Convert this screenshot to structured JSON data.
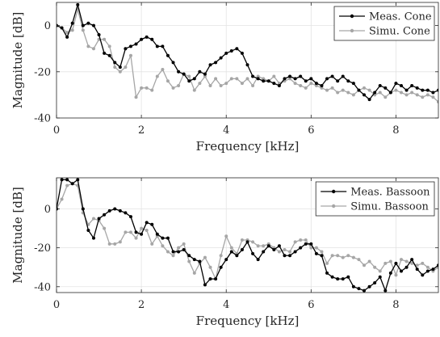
{
  "chart_data": [
    {
      "type": "line",
      "xlabel": "Frequency [kHz]",
      "ylabel": "Magnitude [dB]",
      "xlim": [
        0,
        9
      ],
      "ylim": [
        -40,
        10
      ],
      "xticks": [
        "0",
        "2",
        "4",
        "6",
        "8"
      ],
      "yticks": [
        "0",
        "-20",
        "-40"
      ],
      "xtick_values": [
        0,
        2,
        4,
        6,
        8
      ],
      "ytick_values": [
        0,
        -20,
        -40
      ],
      "grid": true,
      "legend_position": "top-right",
      "x": [
        0.0,
        0.125,
        0.25,
        0.375,
        0.5,
        0.625,
        0.75,
        0.875,
        1.0,
        1.125,
        1.25,
        1.375,
        1.5,
        1.625,
        1.75,
        1.875,
        2.0,
        2.125,
        2.25,
        2.375,
        2.5,
        2.625,
        2.75,
        2.875,
        3.0,
        3.125,
        3.25,
        3.375,
        3.5,
        3.625,
        3.75,
        3.875,
        4.0,
        4.125,
        4.25,
        4.375,
        4.5,
        4.625,
        4.75,
        4.875,
        5.0,
        5.125,
        5.25,
        5.375,
        5.5,
        5.625,
        5.75,
        5.875,
        6.0,
        6.125,
        6.25,
        6.375,
        6.5,
        6.625,
        6.75,
        6.875,
        7.0,
        7.125,
        7.25,
        7.375,
        7.5,
        7.625,
        7.75,
        7.875,
        8.0,
        8.125,
        8.25,
        8.375,
        8.5,
        8.625,
        8.75,
        8.875,
        9.0
      ],
      "series": [
        {
          "name": "Meas. Cone",
          "color": "#000000",
          "values": [
            0,
            -1,
            -5,
            1,
            9,
            0,
            1,
            0,
            -4,
            -12,
            -13,
            -16,
            -18,
            -10,
            -9,
            -8,
            -6,
            -5,
            -6,
            -9,
            -9,
            -13,
            -16,
            -20,
            -21,
            -24,
            -23,
            -20,
            -21,
            -17,
            -16,
            -14,
            -12,
            -11,
            -10,
            -12,
            -17,
            -22,
            -23,
            -24,
            -24,
            -25,
            -26,
            -23,
            -22,
            -23,
            -22,
            -24,
            -23,
            -25,
            -26,
            -23,
            -22,
            -24,
            -22,
            -24,
            -25,
            -28,
            -30,
            -32,
            -29,
            -26,
            -27,
            -29,
            -25,
            -26,
            -28,
            -26,
            -27,
            -28,
            -28,
            -29,
            -28
          ]
        },
        {
          "name": "Simu. Cone",
          "color": "#a6a6a6",
          "values": [
            0,
            -1,
            -3,
            -2,
            7,
            -2,
            -9,
            -10,
            -6,
            -6,
            -9,
            -18,
            -20,
            -18,
            -13,
            -31,
            -27,
            -27,
            -28,
            -22,
            -19,
            -24,
            -27,
            -26,
            -21,
            -22,
            -28,
            -25,
            -22,
            -26,
            -23,
            -26,
            -25,
            -23,
            -23,
            -25,
            -23,
            -26,
            -22,
            -23,
            -24,
            -22,
            -25,
            -24,
            -23,
            -25,
            -26,
            -27,
            -25,
            -26,
            -27,
            -28,
            -27,
            -29,
            -28,
            -29,
            -30,
            -28,
            -27,
            -28,
            -30,
            -29,
            -31,
            -29,
            -28,
            -29,
            -30,
            -29,
            -30,
            -31,
            -30,
            -31,
            -33
          ]
        }
      ]
    },
    {
      "type": "line",
      "xlabel": "Frequency [kHz]",
      "ylabel": "Magnitude [dB]",
      "xlim": [
        0,
        9
      ],
      "ylim": [
        -43,
        16
      ],
      "xticks": [
        "0",
        "2",
        "4",
        "6",
        "8"
      ],
      "yticks": [
        "0",
        "-20",
        "-40"
      ],
      "xtick_values": [
        0,
        2,
        4,
        6,
        8
      ],
      "ytick_values": [
        0,
        -20,
        -40
      ],
      "grid": true,
      "legend_position": "top-right",
      "x": [
        0.0,
        0.125,
        0.25,
        0.375,
        0.5,
        0.625,
        0.75,
        0.875,
        1.0,
        1.125,
        1.25,
        1.375,
        1.5,
        1.625,
        1.75,
        1.875,
        2.0,
        2.125,
        2.25,
        2.375,
        2.5,
        2.625,
        2.75,
        2.875,
        3.0,
        3.125,
        3.25,
        3.375,
        3.5,
        3.625,
        3.75,
        3.875,
        4.0,
        4.125,
        4.25,
        4.375,
        4.5,
        4.625,
        4.75,
        4.875,
        5.0,
        5.125,
        5.25,
        5.375,
        5.5,
        5.625,
        5.75,
        5.875,
        6.0,
        6.125,
        6.25,
        6.375,
        6.5,
        6.625,
        6.75,
        6.875,
        7.0,
        7.125,
        7.25,
        7.375,
        7.5,
        7.625,
        7.75,
        7.875,
        8.0,
        8.125,
        8.25,
        8.375,
        8.5,
        8.625,
        8.75,
        8.875,
        9.0
      ],
      "series": [
        {
          "name": "Meas. Bassoon",
          "color": "#000000",
          "values": [
            0,
            15,
            15,
            13,
            15,
            0,
            -11,
            -15,
            -5,
            -3,
            -1,
            0,
            -1,
            -2,
            -4,
            -12,
            -13,
            -7,
            -8,
            -13,
            -15,
            -15,
            -22,
            -22,
            -21,
            -24,
            -26,
            -27,
            -39,
            -36,
            -36,
            -30,
            -26,
            -22,
            -24,
            -21,
            -17,
            -23,
            -26,
            -22,
            -19,
            -21,
            -19,
            -24,
            -24,
            -22,
            -20,
            -18,
            -18,
            -23,
            -24,
            -33,
            -35,
            -36,
            -36,
            -35,
            -40,
            -41,
            -42,
            -40,
            -38,
            -35,
            -42,
            -33,
            -28,
            -32,
            -30,
            -26,
            -31,
            -34,
            -32,
            -31,
            -29
          ]
        },
        {
          "name": "Simu. Bassoon",
          "color": "#a6a6a6",
          "values": [
            0,
            5,
            12,
            13,
            12,
            -2,
            -8,
            -5,
            -6,
            -10,
            -18,
            -18,
            -17,
            -12,
            -12,
            -15,
            -10,
            -11,
            -18,
            -14,
            -19,
            -22,
            -24,
            -20,
            -18,
            -27,
            -33,
            -28,
            -25,
            -30,
            -36,
            -24,
            -14,
            -20,
            -23,
            -16,
            -16,
            -17,
            -19,
            -19,
            -18,
            -20,
            -22,
            -21,
            -22,
            -17,
            -16,
            -16,
            -20,
            -20,
            -22,
            -28,
            -24,
            -24,
            -25,
            -24,
            -25,
            -26,
            -29,
            -27,
            -30,
            -32,
            -28,
            -27,
            -34,
            -26,
            -27,
            -28,
            -29,
            -28,
            -30,
            -32,
            -30
          ]
        }
      ]
    }
  ]
}
